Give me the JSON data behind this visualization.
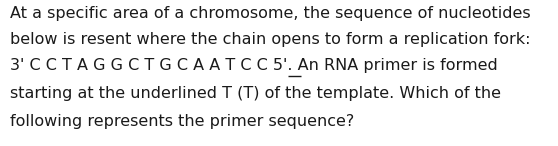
{
  "background_color": "#ffffff",
  "text_color": "#1a1a1a",
  "font_size": 11.5,
  "line1": "At a specific area of a chromosome, the sequence of nucleotides",
  "line2": "below is resent where the chain opens to form a replication fork:",
  "line3_before_T": "3' C C T A G G C T G C A A ",
  "line3_T": "T",
  "line3_after_T": " C C 5'. An RNA primer is formed",
  "line4": "starting at the underlined T (T) of the template. Which of the",
  "line5": "following represents the primer sequence?"
}
